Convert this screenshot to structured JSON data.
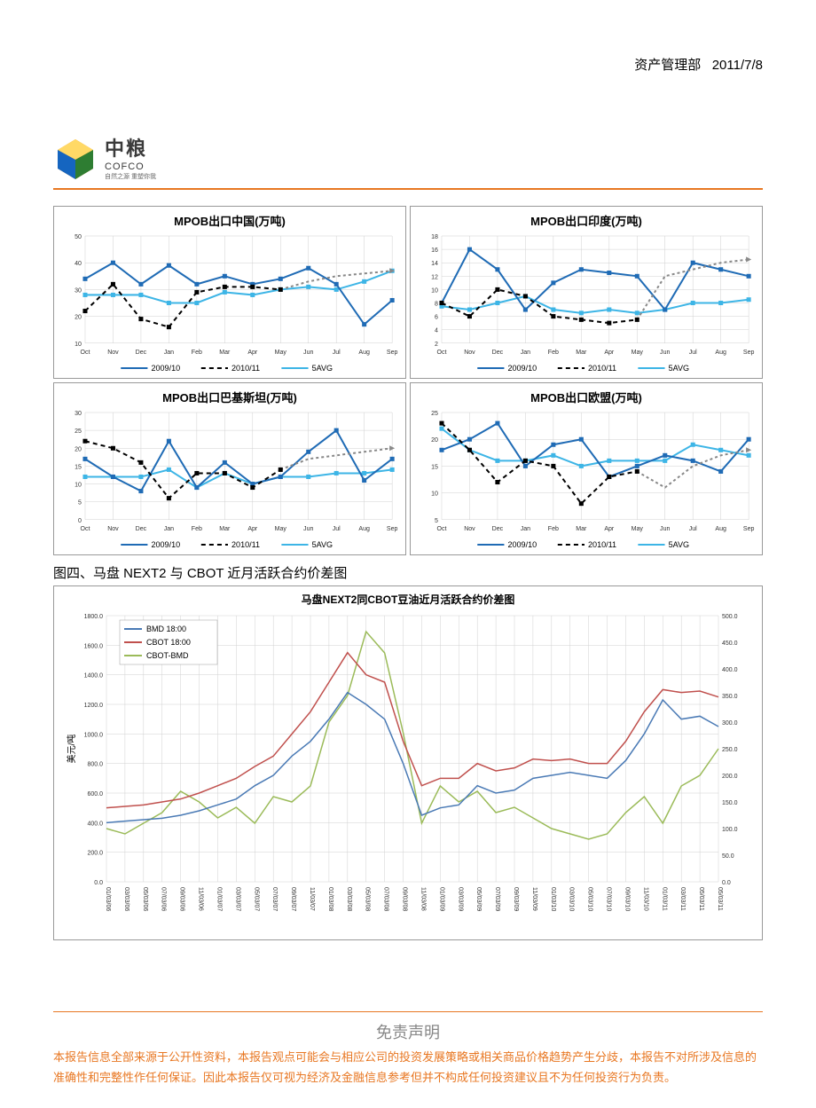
{
  "header": {
    "dept": "资产管理部",
    "date": "2011/7/8"
  },
  "logo": {
    "cn": "中粮",
    "en": "COFCO",
    "tagline": "自然之源 重塑你我"
  },
  "colors": {
    "accent": "#e87722",
    "s09": "#1f6bb5",
    "s10": "#000000",
    "s5avg": "#3db5e6",
    "bmd": "#4a7ab5",
    "cbot": "#c0504d",
    "diff": "#9bbb59",
    "grid": "#d0d0d0"
  },
  "charts": [
    {
      "title": "MPOB出口中国(万吨)",
      "ylim": [
        10,
        50
      ],
      "ystep": 10,
      "x": [
        "Oct",
        "Nov",
        "Dec",
        "Jan",
        "Feb",
        "Mar",
        "Apr",
        "May",
        "Jun",
        "Jul",
        "Aug",
        "Sep"
      ],
      "s09": [
        34,
        40,
        32,
        39,
        32,
        35,
        32,
        34,
        38,
        32,
        17,
        26
      ],
      "s10": [
        22,
        32,
        19,
        16,
        29,
        31,
        31,
        30,
        33,
        35,
        36,
        37
      ],
      "s10_dash": [
        0,
        0,
        0,
        0,
        0,
        0,
        0,
        0,
        1,
        1,
        1,
        1
      ],
      "s5": [
        28,
        28,
        28,
        25,
        25,
        29,
        28,
        30,
        31,
        30,
        33,
        37
      ]
    },
    {
      "title": "MPOB出口印度(万吨)",
      "ylim": [
        2,
        18
      ],
      "ystep": 2,
      "x": [
        "Oct",
        "Nov",
        "Dec",
        "Jan",
        "Feb",
        "Mar",
        "Apr",
        "May",
        "Jun",
        "Jul",
        "Aug",
        "Sep"
      ],
      "s09": [
        8,
        16,
        13,
        7,
        11,
        13,
        12.5,
        12,
        7,
        14,
        13,
        12
      ],
      "s10": [
        8,
        6,
        10,
        9,
        6,
        5.5,
        5,
        5.5,
        12,
        13,
        14,
        14.5
      ],
      "s10_dash": [
        0,
        0,
        0,
        0,
        0,
        0,
        0,
        0,
        1,
        1,
        1,
        1
      ],
      "s5": [
        7.5,
        7,
        8,
        9,
        7,
        6.5,
        7,
        6.5,
        7,
        8,
        8,
        8.5
      ]
    },
    {
      "title": "MPOB出口巴基斯坦(万吨)",
      "ylim": [
        0,
        30
      ],
      "ystep": 5,
      "x": [
        "Oct",
        "Nov",
        "Dec",
        "Jan",
        "Feb",
        "Mar",
        "Apr",
        "May",
        "Jun",
        "Jul",
        "Aug",
        "Sep"
      ],
      "s09": [
        17,
        12,
        8,
        22,
        9,
        16,
        10,
        12,
        19,
        25,
        11,
        17
      ],
      "s10": [
        22,
        20,
        16,
        6,
        13,
        13,
        9,
        14,
        17,
        18,
        19,
        20
      ],
      "s10_dash": [
        0,
        0,
        0,
        0,
        0,
        0,
        0,
        0,
        1,
        1,
        1,
        1
      ],
      "s5": [
        12,
        12,
        12,
        14,
        9,
        13,
        10,
        12,
        12,
        13,
        13,
        14
      ]
    },
    {
      "title": "MPOB出口欧盟(万吨)",
      "ylim": [
        5,
        25
      ],
      "ystep": 5,
      "x": [
        "Oct",
        "Nov",
        "Dec",
        "Jan",
        "Feb",
        "Mar",
        "Apr",
        "May",
        "Jun",
        "Jul",
        "Aug",
        "Sep"
      ],
      "s09": [
        18,
        20,
        23,
        15,
        19,
        20,
        13,
        15,
        17,
        16,
        14,
        20
      ],
      "s10": [
        23,
        18,
        12,
        16,
        15,
        8,
        13,
        14,
        11,
        15,
        17,
        18
      ],
      "s10_dash": [
        0,
        0,
        0,
        0,
        0,
        0,
        0,
        0,
        1,
        1,
        1,
        1
      ],
      "s5": [
        22,
        18,
        16,
        16,
        17,
        15,
        16,
        16,
        16,
        19,
        18,
        17
      ]
    }
  ],
  "legend": {
    "s09": "2009/10",
    "s10": "2010/11",
    "s5": "5AVG"
  },
  "caption": "图四、马盘 NEXT2 与 CBOT 近月活跃合约价差图",
  "bigchart": {
    "title": "马盘NEXT2同CBOT豆油近月活跃合约价差图",
    "yleft": {
      "label": "美元/吨",
      "lim": [
        0,
        1800
      ],
      "step": 200
    },
    "yright": {
      "lim": [
        0,
        500
      ],
      "step": 50
    },
    "legend": [
      "BMD 18:00",
      "CBOT 18:00",
      "CBOT-BMD"
    ],
    "x": [
      "01/03/06",
      "03/03/06",
      "05/03/06",
      "07/03/06",
      "09/03/06",
      "11/03/06",
      "01/03/07",
      "03/03/07",
      "05/03/07",
      "07/03/07",
      "09/03/07",
      "11/03/07",
      "01/03/08",
      "03/03/08",
      "05/03/08",
      "07/03/08",
      "09/03/08",
      "11/03/08",
      "01/03/09",
      "03/03/09",
      "05/03/09",
      "07/03/09",
      "09/03/09",
      "11/03/09",
      "01/03/10",
      "03/03/10",
      "05/03/10",
      "07/03/10",
      "09/03/10",
      "11/03/10",
      "01/03/11",
      "03/03/11",
      "05/03/11",
      "05/03/11"
    ],
    "bmd": [
      400,
      410,
      420,
      430,
      450,
      480,
      520,
      560,
      650,
      720,
      850,
      950,
      1100,
      1280,
      1200,
      1100,
      800,
      450,
      500,
      520,
      650,
      600,
      620,
      700,
      720,
      740,
      720,
      700,
      820,
      1000,
      1230,
      1100,
      1120,
      1050
    ],
    "cbot": [
      500,
      510,
      520,
      540,
      560,
      600,
      650,
      700,
      780,
      850,
      1000,
      1150,
      1350,
      1550,
      1400,
      1350,
      950,
      650,
      700,
      700,
      800,
      750,
      770,
      830,
      820,
      830,
      800,
      800,
      950,
      1150,
      1300,
      1280,
      1290,
      1250
    ],
    "diff": [
      100,
      90,
      110,
      130,
      170,
      150,
      120,
      140,
      110,
      160,
      150,
      180,
      300,
      350,
      470,
      430,
      280,
      110,
      180,
      150,
      170,
      130,
      140,
      120,
      100,
      90,
      80,
      90,
      130,
      160,
      110,
      180,
      200,
      250
    ]
  },
  "disclaimer": {
    "title": "免责声明",
    "text": "本报告信息全部来源于公开性资料，本报告观点可能会与相应公司的投资发展策略或相关商品价格趋势产生分歧，本报告不对所涉及信息的准确性和完整性作任何保证。因此本报告仅可视为经济及金融信息参考但并不构成任何投资建议且不为任何投资行为负责。"
  }
}
